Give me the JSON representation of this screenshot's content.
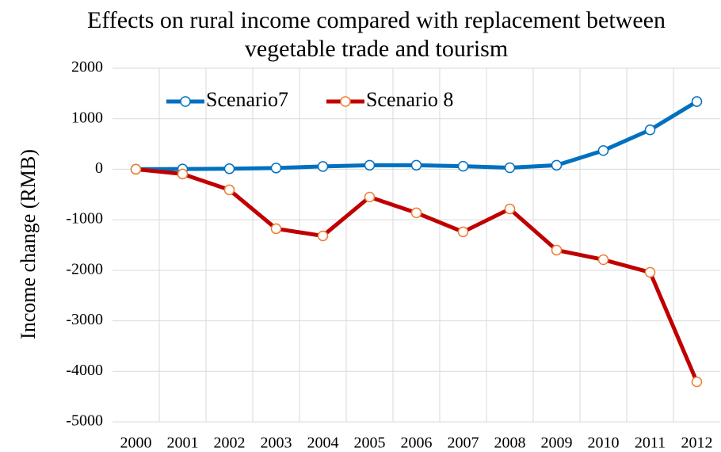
{
  "chart_data": {
    "type": "line",
    "title": "Effects on rural income compared with replacement between vegetable trade and tourism",
    "y_label": "Income change (RMB)",
    "categories": [
      "2000",
      "2001",
      "2002",
      "2003",
      "2004",
      "2005",
      "2006",
      "2007",
      "2008",
      "2009",
      "2010",
      "2011",
      "2012"
    ],
    "series": [
      {
        "name": "Scenario7",
        "color": "#0070c0",
        "marker_edge": "#0070c0",
        "values": [
          0,
          5,
          10,
          25,
          55,
          80,
          80,
          60,
          30,
          80,
          370,
          780,
          1340
        ]
      },
      {
        "name": "Scenario 8",
        "color": "#c00000",
        "marker_edge": "#ed7d31",
        "values": [
          0,
          -94,
          -408,
          -1177,
          -1319,
          -550,
          -863,
          -1240,
          -785,
          -1601,
          -1790,
          -2040,
          -4207
        ]
      }
    ],
    "ylim": [
      -5000,
      2000
    ],
    "yticks": [
      -5000,
      -4000,
      -3000,
      -2000,
      -1000,
      0,
      1000,
      2000
    ],
    "grid": true,
    "legend": "top-left"
  }
}
